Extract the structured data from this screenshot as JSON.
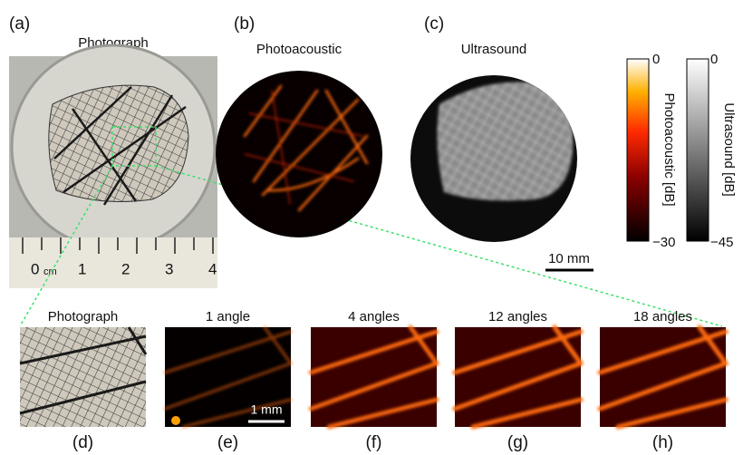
{
  "panels": [
    {
      "tag": "(a)",
      "title": "Photograph"
    },
    {
      "tag": "(b)",
      "title": "Photoacoustic"
    },
    {
      "tag": "(c)",
      "title": "Ultrasound"
    },
    {
      "tag": "(d)",
      "title": "Photograph"
    },
    {
      "tag": "(e)",
      "title": "1 angle"
    },
    {
      "tag": "(f)",
      "title": "4 angles"
    },
    {
      "tag": "(g)",
      "title": "12 angles"
    },
    {
      "tag": "(h)",
      "title": "18 angles"
    }
  ],
  "colorbars": [
    {
      "label": "Photoacoustic [dB]",
      "top": "0",
      "bottom": "−30"
    },
    {
      "label": "Ultrasound [dB]",
      "top": "0",
      "bottom": "−45"
    }
  ],
  "scale_bars": [
    "10 mm",
    "1 mm"
  ],
  "ruler": [
    "0",
    "cm",
    "1",
    "2",
    "3",
    "4"
  ]
}
